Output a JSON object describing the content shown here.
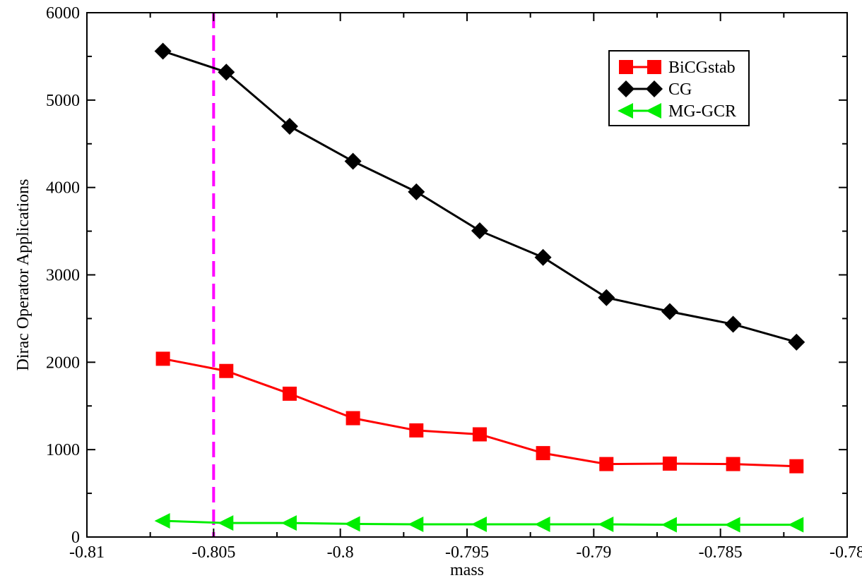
{
  "chart_data": {
    "type": "line",
    "title": "",
    "xlabel": "mass",
    "ylabel": "Dirac Operator Applications",
    "xlim": [
      -0.81,
      -0.78
    ],
    "ylim": [
      0,
      6000
    ],
    "xticks": [
      -0.81,
      -0.805,
      -0.8,
      -0.795,
      -0.79,
      -0.785,
      -0.78
    ],
    "xtick_labels": [
      "-0.81",
      "-0.805",
      "-0.8",
      "-0.795",
      "-0.79",
      "-0.785",
      "-0.78"
    ],
    "yticks": [
      0,
      1000,
      2000,
      3000,
      4000,
      5000,
      6000
    ],
    "ytick_labels": [
      "0",
      "1000",
      "2000",
      "3000",
      "4000",
      "5000",
      "6000"
    ],
    "grid": false,
    "legend_position": "top-right",
    "x": [
      -0.807,
      -0.8045,
      -0.802,
      -0.7995,
      -0.797,
      -0.7945,
      -0.792,
      -0.7895,
      -0.787,
      -0.7845,
      -0.782
    ],
    "series": [
      {
        "name": "BiCGstab",
        "color": "#ff0000",
        "marker": "square",
        "values": [
          2040,
          1900,
          1640,
          1360,
          1220,
          1175,
          960,
          835,
          840,
          835,
          810
        ]
      },
      {
        "name": "CG",
        "color": "#000000",
        "marker": "diamond",
        "values": [
          5560,
          5320,
          4700,
          4300,
          3950,
          3505,
          3200,
          2740,
          2580,
          2435,
          2230
        ]
      },
      {
        "name": "MG-GCR",
        "color": "#00ee00",
        "marker": "triangle-left",
        "values": [
          185,
          160,
          160,
          150,
          145,
          145,
          145,
          145,
          140,
          140,
          140
        ]
      }
    ],
    "reference_line": {
      "orientation": "vertical",
      "x": -0.805,
      "color": "#ff00ff",
      "style": "dashed"
    }
  }
}
